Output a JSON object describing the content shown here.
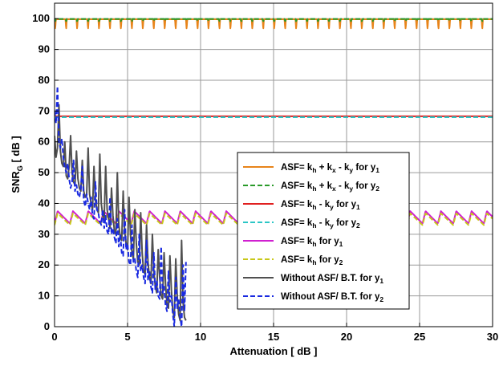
{
  "chart_data": {
    "type": "line",
    "title": "",
    "xlabel": "Attenuation [ dB ]",
    "ylabel": {
      "main": "SNR",
      "sub": "G",
      "tail": " [ dB ]"
    },
    "xlim": [
      0,
      30
    ],
    "ylim": [
      0,
      105
    ],
    "x_ticks": [
      0,
      5,
      10,
      15,
      20,
      25,
      30
    ],
    "y_ticks": [
      0,
      10,
      20,
      30,
      40,
      50,
      60,
      70,
      80,
      90,
      100
    ],
    "grid": true,
    "legend_placement": "center-right",
    "series": [
      {
        "key": "s1",
        "legend": {
          "pre": "ASF= k",
          "sub1": "h",
          "mid1": " + k",
          "sub2": "x",
          "mid2": " - k",
          "sub3": "y",
          "mid3": " for y",
          "sub4": "1"
        },
        "color": "#e8841a",
        "dash": "solid",
        "pattern": {
          "period": 0.75,
          "base": 99.8,
          "dip": 96.5,
          "shape": "spike-down"
        }
      },
      {
        "key": "s2",
        "legend": {
          "pre": "ASF= k",
          "sub1": "h",
          "mid1": " + k",
          "sub2": "x",
          "mid2": " - k",
          "sub3": "y",
          "mid3": " for y",
          "sub4": "2"
        },
        "color": "#2a9a2a",
        "dash": "dashed",
        "pattern": {
          "period": 0.75,
          "base": 99.9,
          "dip": 99.1,
          "shape": "spike-down"
        }
      },
      {
        "key": "s3",
        "legend": {
          "pre": "ASF= k",
          "sub1": "h",
          "mid1": " - k",
          "sub2": "y",
          "mid2": " for y",
          "sub3": "1"
        },
        "color": "#e02020",
        "dash": "solid",
        "pattern": {
          "period": 1,
          "base": 68.3,
          "dip": 68.3,
          "shape": "flat"
        }
      },
      {
        "key": "s4",
        "legend": {
          "pre": "ASF= k",
          "sub1": "h",
          "mid1": " - k",
          "sub2": "y",
          "mid2": " for y",
          "sub3": "2"
        },
        "color": "#2cc6c6",
        "dash": "dashed",
        "pattern": {
          "period": 1,
          "base": 68.0,
          "dip": 68.0,
          "shape": "flat"
        }
      },
      {
        "key": "s5",
        "legend": {
          "pre": "ASF= k",
          "sub1": "h",
          "mid1": " for y",
          "sub2": "1"
        },
        "color": "#d020d0",
        "dash": "solid",
        "pattern": {
          "period": 1.05,
          "base": 33.5,
          "peak": 37.5,
          "shape": "sawtooth"
        }
      },
      {
        "key": "s6",
        "legend": {
          "pre": "ASF= k",
          "sub1": "h",
          "mid1": " for y",
          "sub2": "2"
        },
        "color": "#c8c81a",
        "dash": "dashed",
        "pattern": {
          "period": 1.05,
          "base": 33.0,
          "peak": 36.8,
          "shape": "sawtooth"
        }
      },
      {
        "key": "s7",
        "legend": {
          "pre": "Without ASF/ B.T. for y",
          "sub1": "1"
        },
        "color": "#505050",
        "dash": "solid",
        "x": [
          0,
          0.1,
          0.2,
          0.3,
          0.4,
          0.5,
          0.6,
          0.7,
          0.8,
          0.9,
          1.0,
          1.1,
          1.2,
          1.3,
          1.4,
          1.5,
          1.6,
          1.7,
          1.8,
          1.9,
          2.0,
          2.1,
          2.2,
          2.3,
          2.4,
          2.5,
          2.6,
          2.7,
          2.8,
          2.9,
          3.0,
          3.1,
          3.2,
          3.3,
          3.4,
          3.5,
          3.6,
          3.7,
          3.8,
          3.9,
          4.0,
          4.1,
          4.2,
          4.3,
          4.4,
          4.5,
          4.6,
          4.7,
          4.8,
          4.9,
          5.0,
          5.1,
          5.2,
          5.3,
          5.4,
          5.5,
          5.6,
          5.7,
          5.8,
          5.9,
          6.0,
          6.1,
          6.2,
          6.3,
          6.4,
          6.5,
          6.6,
          6.7,
          6.8,
          6.9,
          7.0,
          7.1,
          7.2,
          7.3,
          7.4,
          7.5,
          7.6,
          7.7,
          7.8,
          7.9,
          8.0,
          8.1,
          8.2,
          8.3,
          8.4,
          8.5,
          8.6,
          8.7,
          8.8,
          8.9,
          9.0
        ],
        "y": [
          62,
          55,
          58,
          72,
          57,
          53,
          52,
          60,
          49,
          48,
          52,
          62,
          50,
          47,
          46,
          57,
          48,
          45,
          44,
          54,
          44,
          42,
          43,
          58,
          43,
          40,
          38,
          52,
          41,
          38,
          37,
          56,
          40,
          36,
          35,
          52,
          38,
          35,
          32,
          45,
          36,
          31,
          30,
          50,
          33,
          29,
          28,
          44,
          31,
          27,
          25,
          42,
          30,
          24,
          22,
          38,
          27,
          21,
          20,
          37,
          24,
          18,
          17,
          33,
          21,
          16,
          14,
          30,
          18,
          13,
          11,
          25,
          16,
          10,
          9,
          24,
          14,
          7,
          6,
          23,
          12,
          5,
          3,
          22,
          10,
          4,
          2,
          28,
          8,
          3,
          2
        ]
      },
      {
        "key": "s8",
        "legend": {
          "pre": "Without ASF/ B.T. for y",
          "sub1": "2"
        },
        "color": "#1a2ae0",
        "dash": "dashed",
        "x": [
          0,
          0.1,
          0.2,
          0.3,
          0.4,
          0.5,
          0.6,
          0.7,
          0.8,
          0.9,
          1.0,
          1.1,
          1.2,
          1.3,
          1.4,
          1.5,
          1.6,
          1.7,
          1.8,
          1.9,
          2.0,
          2.1,
          2.2,
          2.3,
          2.4,
          2.5,
          2.6,
          2.7,
          2.8,
          2.9,
          3.0,
          3.1,
          3.2,
          3.3,
          3.4,
          3.5,
          3.6,
          3.7,
          3.8,
          3.9,
          4.0,
          4.1,
          4.2,
          4.3,
          4.4,
          4.5,
          4.6,
          4.7,
          4.8,
          4.9,
          5.0,
          5.1,
          5.2,
          5.3,
          5.4,
          5.5,
          5.6,
          5.7,
          5.8,
          5.9,
          6.0,
          6.1,
          6.2,
          6.3,
          6.4,
          6.5,
          6.6,
          6.7,
          6.8,
          6.9,
          7.0,
          7.1,
          7.2,
          7.3,
          7.4,
          7.5,
          7.6,
          7.7,
          7.8,
          7.9,
          8.0,
          8.1,
          8.2,
          8.3,
          8.4,
          8.5,
          8.6,
          8.7,
          8.8,
          8.9,
          9.0
        ],
        "y": [
          70,
          66,
          78,
          60,
          58,
          61,
          55,
          52,
          50,
          53,
          48,
          45,
          47,
          54,
          44,
          46,
          43,
          42,
          45,
          52,
          41,
          39,
          43,
          40,
          38,
          42,
          36,
          35,
          47,
          38,
          37,
          34,
          33,
          38,
          32,
          36,
          31,
          30,
          42,
          30,
          32,
          29,
          27,
          35,
          26,
          30,
          24,
          23,
          38,
          25,
          27,
          21,
          20,
          33,
          21,
          22,
          18,
          16,
          30,
          18,
          20,
          16,
          14,
          28,
          15,
          18,
          13,
          11,
          24,
          12,
          15,
          10,
          9,
          26,
          11,
          13,
          7,
          5,
          18,
          8,
          10,
          4,
          0,
          16,
          6,
          9,
          3,
          0,
          20,
          5,
          21
        ]
      }
    ]
  }
}
